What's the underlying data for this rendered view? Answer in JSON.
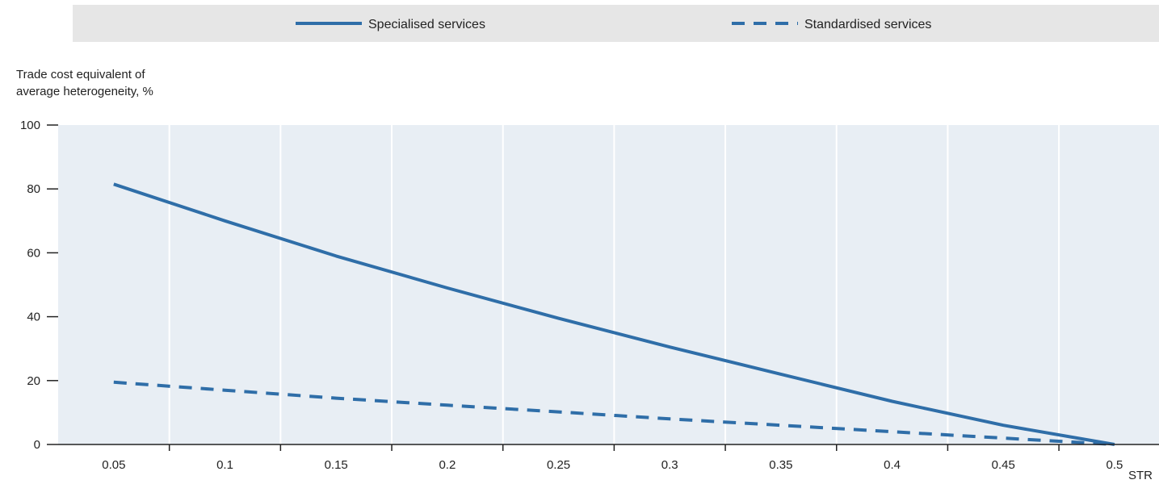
{
  "colors": {
    "plot_background": "#e8eef4",
    "legend_background": "#e6e6e6",
    "series": "#2f6ea8",
    "grid": "#ffffff",
    "axis": "#222222"
  },
  "legend": {
    "placement": "top",
    "items": [
      {
        "label": "Specialised services",
        "style": "solid"
      },
      {
        "label": "Standardised services",
        "style": "dashed"
      }
    ]
  },
  "chart_data": {
    "type": "line",
    "ylabel_line1": "Trade  cost equivalent of",
    "ylabel_line2": "average heterogeneity, %",
    "xlabel": "STR",
    "xlim": [
      0.025,
      0.52
    ],
    "ylim": [
      0,
      100
    ],
    "x_ticks": [
      "0.05",
      "0.1",
      "0.15",
      "0.2",
      "0.25",
      "0.3",
      "0.35",
      "0.4",
      "0.45",
      "0.5"
    ],
    "x_tick_values": [
      0.05,
      0.1,
      0.15,
      0.2,
      0.25,
      0.3,
      0.35,
      0.4,
      0.45,
      0.5
    ],
    "y_ticks": [
      "0",
      "20",
      "40",
      "60",
      "80",
      "100"
    ],
    "y_tick_values": [
      0,
      20,
      40,
      60,
      80,
      100
    ],
    "grid": "vertical",
    "series": [
      {
        "name": "Specialised services",
        "style": "solid",
        "x": [
          0.05,
          0.1,
          0.15,
          0.2,
          0.25,
          0.3,
          0.35,
          0.4,
          0.45,
          0.5
        ],
        "y": [
          81.5,
          70,
          59,
          49,
          39.5,
          30.5,
          22,
          13.5,
          6,
          0
        ]
      },
      {
        "name": "Standardised services",
        "style": "dashed",
        "x": [
          0.05,
          0.1,
          0.15,
          0.2,
          0.25,
          0.3,
          0.35,
          0.4,
          0.45,
          0.5
        ],
        "y": [
          19.5,
          17,
          14.5,
          12.3,
          10.2,
          8,
          6,
          4,
          2,
          0
        ]
      }
    ]
  }
}
